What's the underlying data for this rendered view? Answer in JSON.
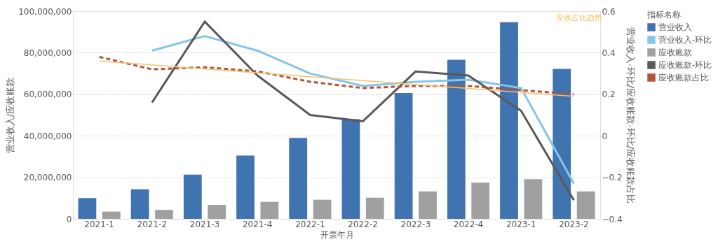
{
  "chart_data": {
    "type": "bar",
    "xlabel": "开票年月",
    "ylabel": "营业收入/应收账款",
    "y2label": "营业收入-环比/应收账款-环比/应收账款占比",
    "legend_title": "指标名称",
    "legend": "right",
    "grid": "y",
    "categories": [
      "2021-1",
      "2021-2",
      "2021-3",
      "2021-4",
      "2022-1",
      "2022-2",
      "2022-3",
      "2022-4",
      "2023-1",
      "2023-2"
    ],
    "ylim": [
      0,
      100000000
    ],
    "yticks": [
      0,
      {
        "value": 20000000,
        "label": "20,000,000"
      },
      {
        "value": 40000000,
        "label": "40,000,000"
      },
      {
        "value": 60000000,
        "label": "60,000,000"
      },
      {
        "value": 80000000,
        "label": "80,000,000"
      },
      {
        "value": 100000000,
        "label": "100,000,000"
      }
    ],
    "y2lim": [
      -0.4,
      0.6
    ],
    "y2ticks": [
      -0.4,
      -0.2,
      0,
      0.2,
      0.4,
      0.6
    ],
    "annotations": [
      "应收占比趋势"
    ],
    "series": [
      {
        "name": "营业收入",
        "color": "#4074b0",
        "values": [
          10000000,
          14200000,
          21300000,
          30500000,
          39000000,
          48000000,
          60600000,
          76600000,
          94700000,
          72200000
        ]
      },
      {
        "name": "营业收入-环比",
        "type": "line",
        "axis": "y2",
        "color": "#85c5e5",
        "line_style": "solid",
        "values": [
          null,
          0.41,
          0.48,
          0.41,
          0.3,
          0.24,
          0.26,
          0.27,
          0.23,
          -0.23
        ]
      },
      {
        "name": "应收账款",
        "color": "#a0a0a0",
        "values": [
          3500000,
          4300000,
          6700000,
          8200000,
          9200000,
          10200000,
          13200000,
          17400000,
          19100000,
          13200000
        ]
      },
      {
        "name": "应收账款-环比",
        "type": "line",
        "axis": "y2",
        "color": "#595959",
        "line_style": "solid",
        "values": [
          null,
          0.16,
          0.55,
          0.29,
          0.1,
          0.07,
          0.31,
          0.29,
          0.12,
          -0.31
        ]
      },
      {
        "name": "应收账款占比",
        "type": "line",
        "axis": "y2",
        "color": "#b5533c",
        "line_style": "dashed",
        "values": [
          0.38,
          0.32,
          0.33,
          0.31,
          0.26,
          0.23,
          0.24,
          0.24,
          0.22,
          0.2
        ]
      },
      {
        "type": "line",
        "axis": "y2",
        "color": "#f5c26b",
        "line_style": "solid",
        "x": [
          "2021-1",
          "2023-2"
        ],
        "values": [
          0.36,
          0.19
        ]
      }
    ]
  }
}
